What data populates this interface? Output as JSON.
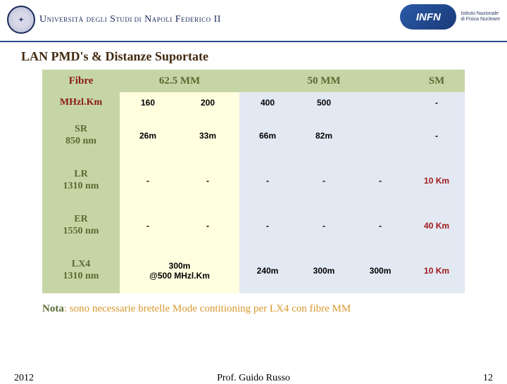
{
  "banner": {
    "seal_text": "✦",
    "university_html": "U<span class='small'>NIVERSITÀ</span> <span class='small'>DEGLI</span> S<span class='small'>TUDI DI</span> N<span class='small'>APOLI</span> F<span class='small'>EDERICO</span> II",
    "infn_logo_text": "INFN",
    "infn_sub_line1": "Istituto Nazionale",
    "infn_sub_line2": "di Fisica Nucleare"
  },
  "title": "LAN PMD's & Distanze Suportate",
  "table": {
    "head_fibre": "Fibre",
    "head_625": "62.5 MM",
    "head_50": "50 MM",
    "head_sm": "SM",
    "mhzkm_label": "MHzl.Km",
    "mhz": {
      "c1": "160",
      "c2": "200",
      "c3": "400",
      "c4": "500",
      "c5": "",
      "c6": "-"
    },
    "rows": [
      {
        "label_l1": "SR",
        "label_l2": "850 nm",
        "c1": "26m",
        "c2": "33m",
        "c3": "66m",
        "c4": "82m",
        "c5": "",
        "c6": "-",
        "cls": {
          "c1": "c-yellow",
          "c2": "c-yellow",
          "c3": "c-blue",
          "c4": "c-blue",
          "c5": "c-blue",
          "c6": "c-blue"
        }
      },
      {
        "label_l1": "LR",
        "label_l2": "1310 nm",
        "c1": "-",
        "c2": "-",
        "c3": "-",
        "c4": "-",
        "c5": "-",
        "c6": "10 Km",
        "cls": {
          "c1": "c-yellow",
          "c2": "c-yellow",
          "c3": "c-blue",
          "c4": "c-blue",
          "c5": "c-blue",
          "c6": "c-blue-red"
        }
      },
      {
        "label_l1": "ER",
        "label_l2": "1550 nm",
        "c1": "-",
        "c2": "-",
        "c3": "-",
        "c4": "-",
        "c5": "-",
        "c6": "40 Km",
        "cls": {
          "c1": "c-yellow",
          "c2": "c-yellow",
          "c3": "c-blue",
          "c4": "c-blue",
          "c5": "c-blue",
          "c6": "c-blue-red"
        }
      },
      {
        "label_l1": "LX4",
        "label_l2": "1310 nm",
        "merged12_l1": "300m",
        "merged12_l2": "@500 MHzl.Km",
        "c3": "240m",
        "c4": "300m",
        "c5": "300m",
        "c6": "10 Km",
        "cls": {
          "m12": "c-yellow",
          "c3": "c-blue",
          "c4": "c-blue",
          "c5": "c-blue",
          "c6": "c-blue-red"
        }
      }
    ]
  },
  "nota": {
    "label": "Nota",
    "text": ": sono necessarie bretelle Mode contitioning per LX4 con fibre MM"
  },
  "footer": {
    "year": "2012",
    "prof": "Prof. Guido Russo",
    "page": "12"
  },
  "colors": {
    "green_bg": "#c6d5a5",
    "green_text": "#5a6a32",
    "brown_title": "#432a0f",
    "red_text": "#8a1a1a",
    "yellow_bg": "#ffffe0",
    "blue_bg": "#e3e9f3",
    "blue_red_text": "#a01818",
    "nota_orange": "#d8992e"
  }
}
